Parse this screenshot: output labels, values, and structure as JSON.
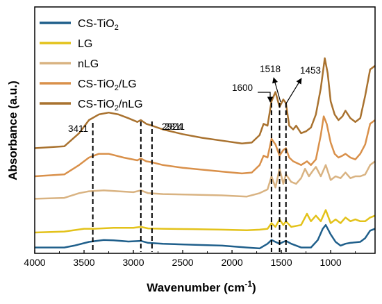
{
  "chart_data": {
    "type": "line",
    "xlabel": "Wavenumber (cm",
    "xlabel_sup": "-1",
    "xlabel_end": ")",
    "ylabel": "Absorbance (a.u.)",
    "xlim": [
      4000,
      550
    ],
    "x_reversed": true,
    "xticks": [
      4000,
      3500,
      3000,
      2500,
      2000,
      1500,
      1000
    ],
    "y_tick_labels_shown": false,
    "grid": false,
    "legend_position": "top-left",
    "series": [
      {
        "name": "CS-TiO2",
        "color": "#1f5f8b",
        "points": [
          [
            4000,
            0.02
          ],
          [
            3700,
            0.02
          ],
          [
            3600,
            0.03
          ],
          [
            3450,
            0.05
          ],
          [
            3300,
            0.06
          ],
          [
            3200,
            0.058
          ],
          [
            3050,
            0.052
          ],
          [
            2924,
            0.055
          ],
          [
            2850,
            0.045
          ],
          [
            2700,
            0.04
          ],
          [
            2400,
            0.035
          ],
          [
            2100,
            0.03
          ],
          [
            1850,
            0.02
          ],
          [
            1720,
            0.015
          ],
          [
            1640,
            0.04
          ],
          [
            1600,
            0.06
          ],
          [
            1560,
            0.05
          ],
          [
            1518,
            0.04
          ],
          [
            1480,
            0.05
          ],
          [
            1453,
            0.055
          ],
          [
            1400,
            0.04
          ],
          [
            1300,
            0.02
          ],
          [
            1200,
            0.02
          ],
          [
            1130,
            0.06
          ],
          [
            1080,
            0.12
          ],
          [
            1050,
            0.14
          ],
          [
            1000,
            0.09
          ],
          [
            950,
            0.05
          ],
          [
            900,
            0.03
          ],
          [
            850,
            0.04
          ],
          [
            800,
            0.045
          ],
          [
            700,
            0.05
          ],
          [
            650,
            0.07
          ],
          [
            600,
            0.11
          ],
          [
            550,
            0.12
          ]
        ]
      },
      {
        "name": "LG",
        "color": "#e3c21a",
        "points": [
          [
            4000,
            0.0
          ],
          [
            3700,
            0.005
          ],
          [
            3500,
            0.02
          ],
          [
            3400,
            0.02
          ],
          [
            3200,
            0.025
          ],
          [
            3000,
            0.025
          ],
          [
            2924,
            0.03
          ],
          [
            2850,
            0.022
          ],
          [
            2700,
            0.02
          ],
          [
            2400,
            0.018
          ],
          [
            2100,
            0.015
          ],
          [
            1850,
            0.012
          ],
          [
            1720,
            0.015
          ],
          [
            1640,
            0.02
          ],
          [
            1600,
            0.05
          ],
          [
            1560,
            0.03
          ],
          [
            1518,
            0.07
          ],
          [
            1480,
            0.04
          ],
          [
            1453,
            0.06
          ],
          [
            1400,
            0.03
          ],
          [
            1300,
            0.04
          ],
          [
            1240,
            0.1
          ],
          [
            1200,
            0.06
          ],
          [
            1150,
            0.09
          ],
          [
            1100,
            0.06
          ],
          [
            1050,
            0.12
          ],
          [
            1000,
            0.05
          ],
          [
            950,
            0.07
          ],
          [
            900,
            0.05
          ],
          [
            850,
            0.08
          ],
          [
            800,
            0.06
          ],
          [
            750,
            0.07
          ],
          [
            700,
            0.06
          ],
          [
            650,
            0.06
          ],
          [
            600,
            0.08
          ],
          [
            550,
            0.09
          ]
        ]
      },
      {
        "name": "nLG",
        "color": "#d9b382",
        "points": [
          [
            4000,
            0.0
          ],
          [
            3700,
            0.005
          ],
          [
            3550,
            0.03
          ],
          [
            3450,
            0.04
          ],
          [
            3300,
            0.045
          ],
          [
            3150,
            0.04
          ],
          [
            3000,
            0.035
          ],
          [
            2924,
            0.045
          ],
          [
            2850,
            0.03
          ],
          [
            2700,
            0.025
          ],
          [
            2400,
            0.022
          ],
          [
            2100,
            0.018
          ],
          [
            1850,
            0.012
          ],
          [
            1720,
            0.03
          ],
          [
            1640,
            0.05
          ],
          [
            1600,
            0.12
          ],
          [
            1560,
            0.06
          ],
          [
            1518,
            0.16
          ],
          [
            1480,
            0.08
          ],
          [
            1453,
            0.13
          ],
          [
            1400,
            0.09
          ],
          [
            1350,
            0.08
          ],
          [
            1300,
            0.11
          ],
          [
            1260,
            0.16
          ],
          [
            1220,
            0.12
          ],
          [
            1180,
            0.15
          ],
          [
            1150,
            0.17
          ],
          [
            1100,
            0.12
          ],
          [
            1050,
            0.18
          ],
          [
            1000,
            0.1
          ],
          [
            950,
            0.12
          ],
          [
            900,
            0.11
          ],
          [
            850,
            0.14
          ],
          [
            800,
            0.11
          ],
          [
            750,
            0.12
          ],
          [
            700,
            0.12
          ],
          [
            650,
            0.13
          ],
          [
            600,
            0.18
          ],
          [
            550,
            0.2
          ]
        ]
      },
      {
        "name": "CS-TiO2/LG",
        "color": "#d9904a",
        "points": [
          [
            4000,
            0.0
          ],
          [
            3700,
            0.01
          ],
          [
            3550,
            0.06
          ],
          [
            3450,
            0.1
          ],
          [
            3350,
            0.12
          ],
          [
            3250,
            0.12
          ],
          [
            3100,
            0.1
          ],
          [
            2960,
            0.085
          ],
          [
            2924,
            0.095
          ],
          [
            2870,
            0.08
          ],
          [
            2811,
            0.075
          ],
          [
            2700,
            0.06
          ],
          [
            2500,
            0.045
          ],
          [
            2300,
            0.035
          ],
          [
            2100,
            0.025
          ],
          [
            1900,
            0.015
          ],
          [
            1800,
            0.02
          ],
          [
            1720,
            0.06
          ],
          [
            1680,
            0.11
          ],
          [
            1640,
            0.1
          ],
          [
            1600,
            0.2
          ],
          [
            1560,
            0.17
          ],
          [
            1518,
            0.11
          ],
          [
            1480,
            0.14
          ],
          [
            1453,
            0.15
          ],
          [
            1420,
            0.1
          ],
          [
            1380,
            0.08
          ],
          [
            1300,
            0.06
          ],
          [
            1240,
            0.08
          ],
          [
            1200,
            0.06
          ],
          [
            1150,
            0.09
          ],
          [
            1100,
            0.22
          ],
          [
            1070,
            0.32
          ],
          [
            1040,
            0.28
          ],
          [
            1000,
            0.18
          ],
          [
            960,
            0.12
          ],
          [
            920,
            0.1
          ],
          [
            880,
            0.11
          ],
          [
            850,
            0.12
          ],
          [
            800,
            0.1
          ],
          [
            750,
            0.09
          ],
          [
            700,
            0.12
          ],
          [
            650,
            0.17
          ],
          [
            600,
            0.28
          ],
          [
            550,
            0.3
          ]
        ]
      },
      {
        "name": "CS-TiO2/nLG",
        "color": "#a9722f",
        "points": [
          [
            4000,
            0.0
          ],
          [
            3700,
            0.01
          ],
          [
            3550,
            0.08
          ],
          [
            3450,
            0.15
          ],
          [
            3350,
            0.18
          ],
          [
            3250,
            0.19
          ],
          [
            3150,
            0.18
          ],
          [
            3050,
            0.16
          ],
          [
            2960,
            0.14
          ],
          [
            2924,
            0.15
          ],
          [
            2870,
            0.13
          ],
          [
            2811,
            0.12
          ],
          [
            2700,
            0.1
          ],
          [
            2500,
            0.075
          ],
          [
            2300,
            0.055
          ],
          [
            2100,
            0.04
          ],
          [
            1900,
            0.025
          ],
          [
            1800,
            0.03
          ],
          [
            1720,
            0.07
          ],
          [
            1680,
            0.13
          ],
          [
            1640,
            0.12
          ],
          [
            1600,
            0.25
          ],
          [
            1560,
            0.3
          ],
          [
            1518,
            0.22
          ],
          [
            1480,
            0.26
          ],
          [
            1453,
            0.24
          ],
          [
            1420,
            0.12
          ],
          [
            1380,
            0.1
          ],
          [
            1350,
            0.12
          ],
          [
            1300,
            0.08
          ],
          [
            1250,
            0.09
          ],
          [
            1200,
            0.11
          ],
          [
            1150,
            0.18
          ],
          [
            1100,
            0.32
          ],
          [
            1060,
            0.48
          ],
          [
            1030,
            0.4
          ],
          [
            1000,
            0.25
          ],
          [
            960,
            0.18
          ],
          [
            920,
            0.15
          ],
          [
            880,
            0.17
          ],
          [
            850,
            0.2
          ],
          [
            800,
            0.16
          ],
          [
            750,
            0.14
          ],
          [
            700,
            0.16
          ],
          [
            650,
            0.28
          ],
          [
            600,
            0.42
          ],
          [
            550,
            0.44
          ]
        ]
      }
    ],
    "offsets": [
      0,
      0.1,
      0.28,
      0.4,
      0.55
    ],
    "annotations": [
      {
        "text": "3411",
        "x": 3411
      },
      {
        "text": "2924",
        "x": 2924
      },
      {
        "text": "2811",
        "x": 2811
      },
      {
        "text": "1600",
        "x": 1600
      },
      {
        "text": "1518",
        "x": 1518
      },
      {
        "text": "1453",
        "x": 1453
      }
    ]
  }
}
